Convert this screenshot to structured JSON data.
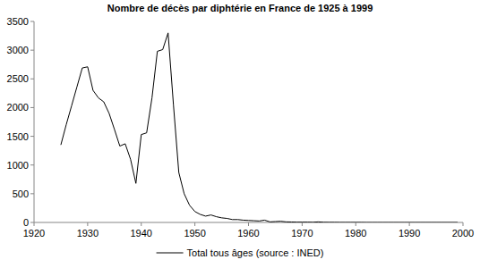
{
  "chart_data": {
    "type": "line",
    "title": "Nombre de décès par diphtérie en France de 1925 à 1999",
    "x": [
      1925,
      1926,
      1927,
      1928,
      1929,
      1930,
      1931,
      1932,
      1933,
      1934,
      1935,
      1936,
      1937,
      1938,
      1939,
      1940,
      1941,
      1942,
      1943,
      1944,
      1945,
      1946,
      1947,
      1948,
      1949,
      1950,
      1951,
      1952,
      1953,
      1954,
      1955,
      1956,
      1957,
      1958,
      1959,
      1960,
      1961,
      1962,
      1963,
      1964,
      1965,
      1966,
      1967,
      1968,
      1969,
      1970,
      1971,
      1972,
      1973,
      1974,
      1975,
      1976,
      1977,
      1978,
      1979,
      1980,
      1981,
      1982,
      1983,
      1984,
      1985,
      1986,
      1987,
      1988,
      1989,
      1990,
      1991,
      1992,
      1993,
      1994,
      1995,
      1996,
      1997,
      1998,
      1999
    ],
    "series": [
      {
        "name": "Total tous âges (source : INED)",
        "color": "#000000",
        "values": [
          1350,
          1700,
          2030,
          2360,
          2690,
          2710,
          2300,
          2170,
          2100,
          1900,
          1620,
          1330,
          1370,
          1100,
          680,
          1530,
          1560,
          2170,
          2980,
          3010,
          3300,
          2050,
          870,
          500,
          300,
          190,
          140,
          110,
          130,
          100,
          80,
          70,
          50,
          50,
          40,
          35,
          30,
          25,
          40,
          10,
          15,
          20,
          10,
          8,
          5,
          5,
          5,
          3,
          10,
          3,
          2,
          2,
          1,
          1,
          1,
          1,
          1,
          0,
          0,
          0,
          0,
          0,
          0,
          0,
          0,
          0,
          0,
          0,
          0,
          0,
          0,
          0,
          0,
          0,
          0
        ]
      }
    ],
    "xlim": [
      1920,
      2000
    ],
    "xticks": [
      1920,
      1930,
      1940,
      1950,
      1960,
      1970,
      1980,
      1990,
      2000
    ],
    "ylim": [
      0,
      3500
    ],
    "yticks": [
      0,
      500,
      1000,
      1500,
      2000,
      2500,
      3000,
      3500
    ],
    "grid": false,
    "legend": "bottom"
  }
}
